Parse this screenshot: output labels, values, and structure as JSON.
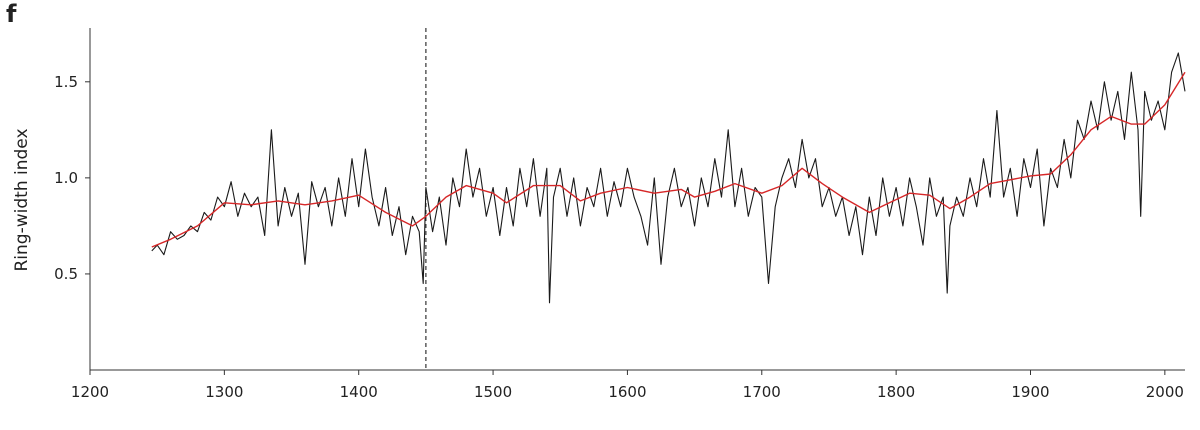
{
  "chart_data": {
    "type": "line",
    "panel_label": "f",
    "ylabel": "Ring-width index",
    "xlim": [
      1200,
      2015
    ],
    "ylim": [
      0,
      1.78
    ],
    "xticks": [
      1200,
      1300,
      1400,
      1500,
      1600,
      1700,
      1800,
      1900,
      2000
    ],
    "yticks": [
      0.5,
      {
        "value": 1,
        "label": "1.0"
      },
      1.5
    ],
    "vline": 1450,
    "series": [
      {
        "color": "#1a1a1a",
        "width": 1.1,
        "x": [
          1246,
          1250,
          1255,
          1260,
          1265,
          1270,
          1275,
          1280,
          1285,
          1290,
          1295,
          1300,
          1305,
          1310,
          1315,
          1320,
          1325,
          1330,
          1335,
          1340,
          1345,
          1350,
          1355,
          1360,
          1365,
          1370,
          1375,
          1380,
          1385,
          1390,
          1395,
          1400,
          1405,
          1410,
          1415,
          1420,
          1425,
          1430,
          1435,
          1440,
          1445,
          1448,
          1450,
          1455,
          1460,
          1465,
          1470,
          1475,
          1480,
          1485,
          1490,
          1495,
          1500,
          1505,
          1510,
          1515,
          1520,
          1525,
          1530,
          1535,
          1540,
          1542,
          1545,
          1550,
          1555,
          1560,
          1565,
          1570,
          1575,
          1580,
          1585,
          1590,
          1595,
          1600,
          1605,
          1610,
          1615,
          1620,
          1625,
          1630,
          1635,
          1640,
          1645,
          1650,
          1655,
          1660,
          1665,
          1670,
          1675,
          1680,
          1685,
          1690,
          1695,
          1700,
          1705,
          1710,
          1715,
          1720,
          1725,
          1730,
          1735,
          1740,
          1745,
          1750,
          1755,
          1760,
          1765,
          1770,
          1775,
          1780,
          1785,
          1790,
          1795,
          1800,
          1805,
          1810,
          1815,
          1820,
          1825,
          1830,
          1835,
          1838,
          1840,
          1845,
          1850,
          1855,
          1860,
          1865,
          1870,
          1875,
          1880,
          1885,
          1890,
          1895,
          1900,
          1905,
          1910,
          1915,
          1920,
          1925,
          1930,
          1935,
          1940,
          1945,
          1950,
          1955,
          1960,
          1965,
          1970,
          1975,
          1980,
          1982,
          1985,
          1990,
          1995,
          2000,
          2005,
          2010,
          2015
        ],
        "values": [
          0.62,
          0.65,
          0.6,
          0.72,
          0.68,
          0.7,
          0.75,
          0.72,
          0.82,
          0.78,
          0.9,
          0.85,
          0.98,
          0.8,
          0.92,
          0.85,
          0.9,
          0.7,
          1.25,
          0.75,
          0.95,
          0.8,
          0.92,
          0.55,
          0.98,
          0.85,
          0.95,
          0.75,
          1.0,
          0.8,
          1.1,
          0.85,
          1.15,
          0.9,
          0.75,
          0.95,
          0.7,
          0.85,
          0.6,
          0.8,
          0.72,
          0.45,
          0.95,
          0.72,
          0.9,
          0.65,
          1.0,
          0.85,
          1.15,
          0.9,
          1.05,
          0.8,
          0.95,
          0.7,
          0.95,
          0.75,
          1.05,
          0.85,
          1.1,
          0.8,
          1.05,
          0.35,
          0.9,
          1.05,
          0.8,
          1.0,
          0.75,
          0.95,
          0.85,
          1.05,
          0.8,
          0.98,
          0.85,
          1.05,
          0.9,
          0.8,
          0.65,
          1.0,
          0.55,
          0.9,
          1.05,
          0.85,
          0.95,
          0.75,
          1.0,
          0.85,
          1.1,
          0.9,
          1.25,
          0.85,
          1.05,
          0.8,
          0.95,
          0.9,
          0.45,
          0.85,
          1.0,
          1.1,
          0.95,
          1.2,
          1.0,
          1.1,
          0.85,
          0.95,
          0.8,
          0.9,
          0.7,
          0.85,
          0.6,
          0.9,
          0.7,
          1.0,
          0.8,
          0.95,
          0.75,
          1.0,
          0.85,
          0.65,
          1.0,
          0.8,
          0.9,
          0.4,
          0.75,
          0.9,
          0.8,
          1.0,
          0.85,
          1.1,
          0.9,
          1.35,
          0.9,
          1.05,
          0.8,
          1.1,
          0.95,
          1.15,
          0.75,
          1.05,
          0.95,
          1.2,
          1.0,
          1.3,
          1.2,
          1.4,
          1.25,
          1.5,
          1.3,
          1.45,
          1.2,
          1.55,
          1.25,
          0.8,
          1.45,
          1.3,
          1.4,
          1.25,
          1.55,
          1.65,
          1.45
        ]
      },
      {
        "color": "#d62728",
        "width": 1.4,
        "x": [
          1246,
          1260,
          1280,
          1300,
          1320,
          1340,
          1360,
          1380,
          1400,
          1420,
          1440,
          1450,
          1465,
          1480,
          1500,
          1510,
          1530,
          1550,
          1565,
          1580,
          1600,
          1620,
          1640,
          1650,
          1665,
          1680,
          1700,
          1715,
          1730,
          1745,
          1760,
          1780,
          1795,
          1810,
          1825,
          1840,
          1855,
          1870,
          1885,
          1900,
          1915,
          1930,
          1945,
          1960,
          1975,
          1985,
          2000,
          2015
        ],
        "values": [
          0.64,
          0.68,
          0.75,
          0.87,
          0.86,
          0.88,
          0.86,
          0.88,
          0.91,
          0.82,
          0.75,
          0.8,
          0.9,
          0.96,
          0.92,
          0.87,
          0.96,
          0.96,
          0.88,
          0.92,
          0.95,
          0.92,
          0.94,
          0.9,
          0.93,
          0.97,
          0.92,
          0.96,
          1.05,
          0.97,
          0.9,
          0.82,
          0.87,
          0.92,
          0.91,
          0.84,
          0.9,
          0.97,
          0.99,
          1.01,
          1.02,
          1.12,
          1.25,
          1.32,
          1.28,
          1.28,
          1.38,
          1.55
        ]
      }
    ]
  }
}
